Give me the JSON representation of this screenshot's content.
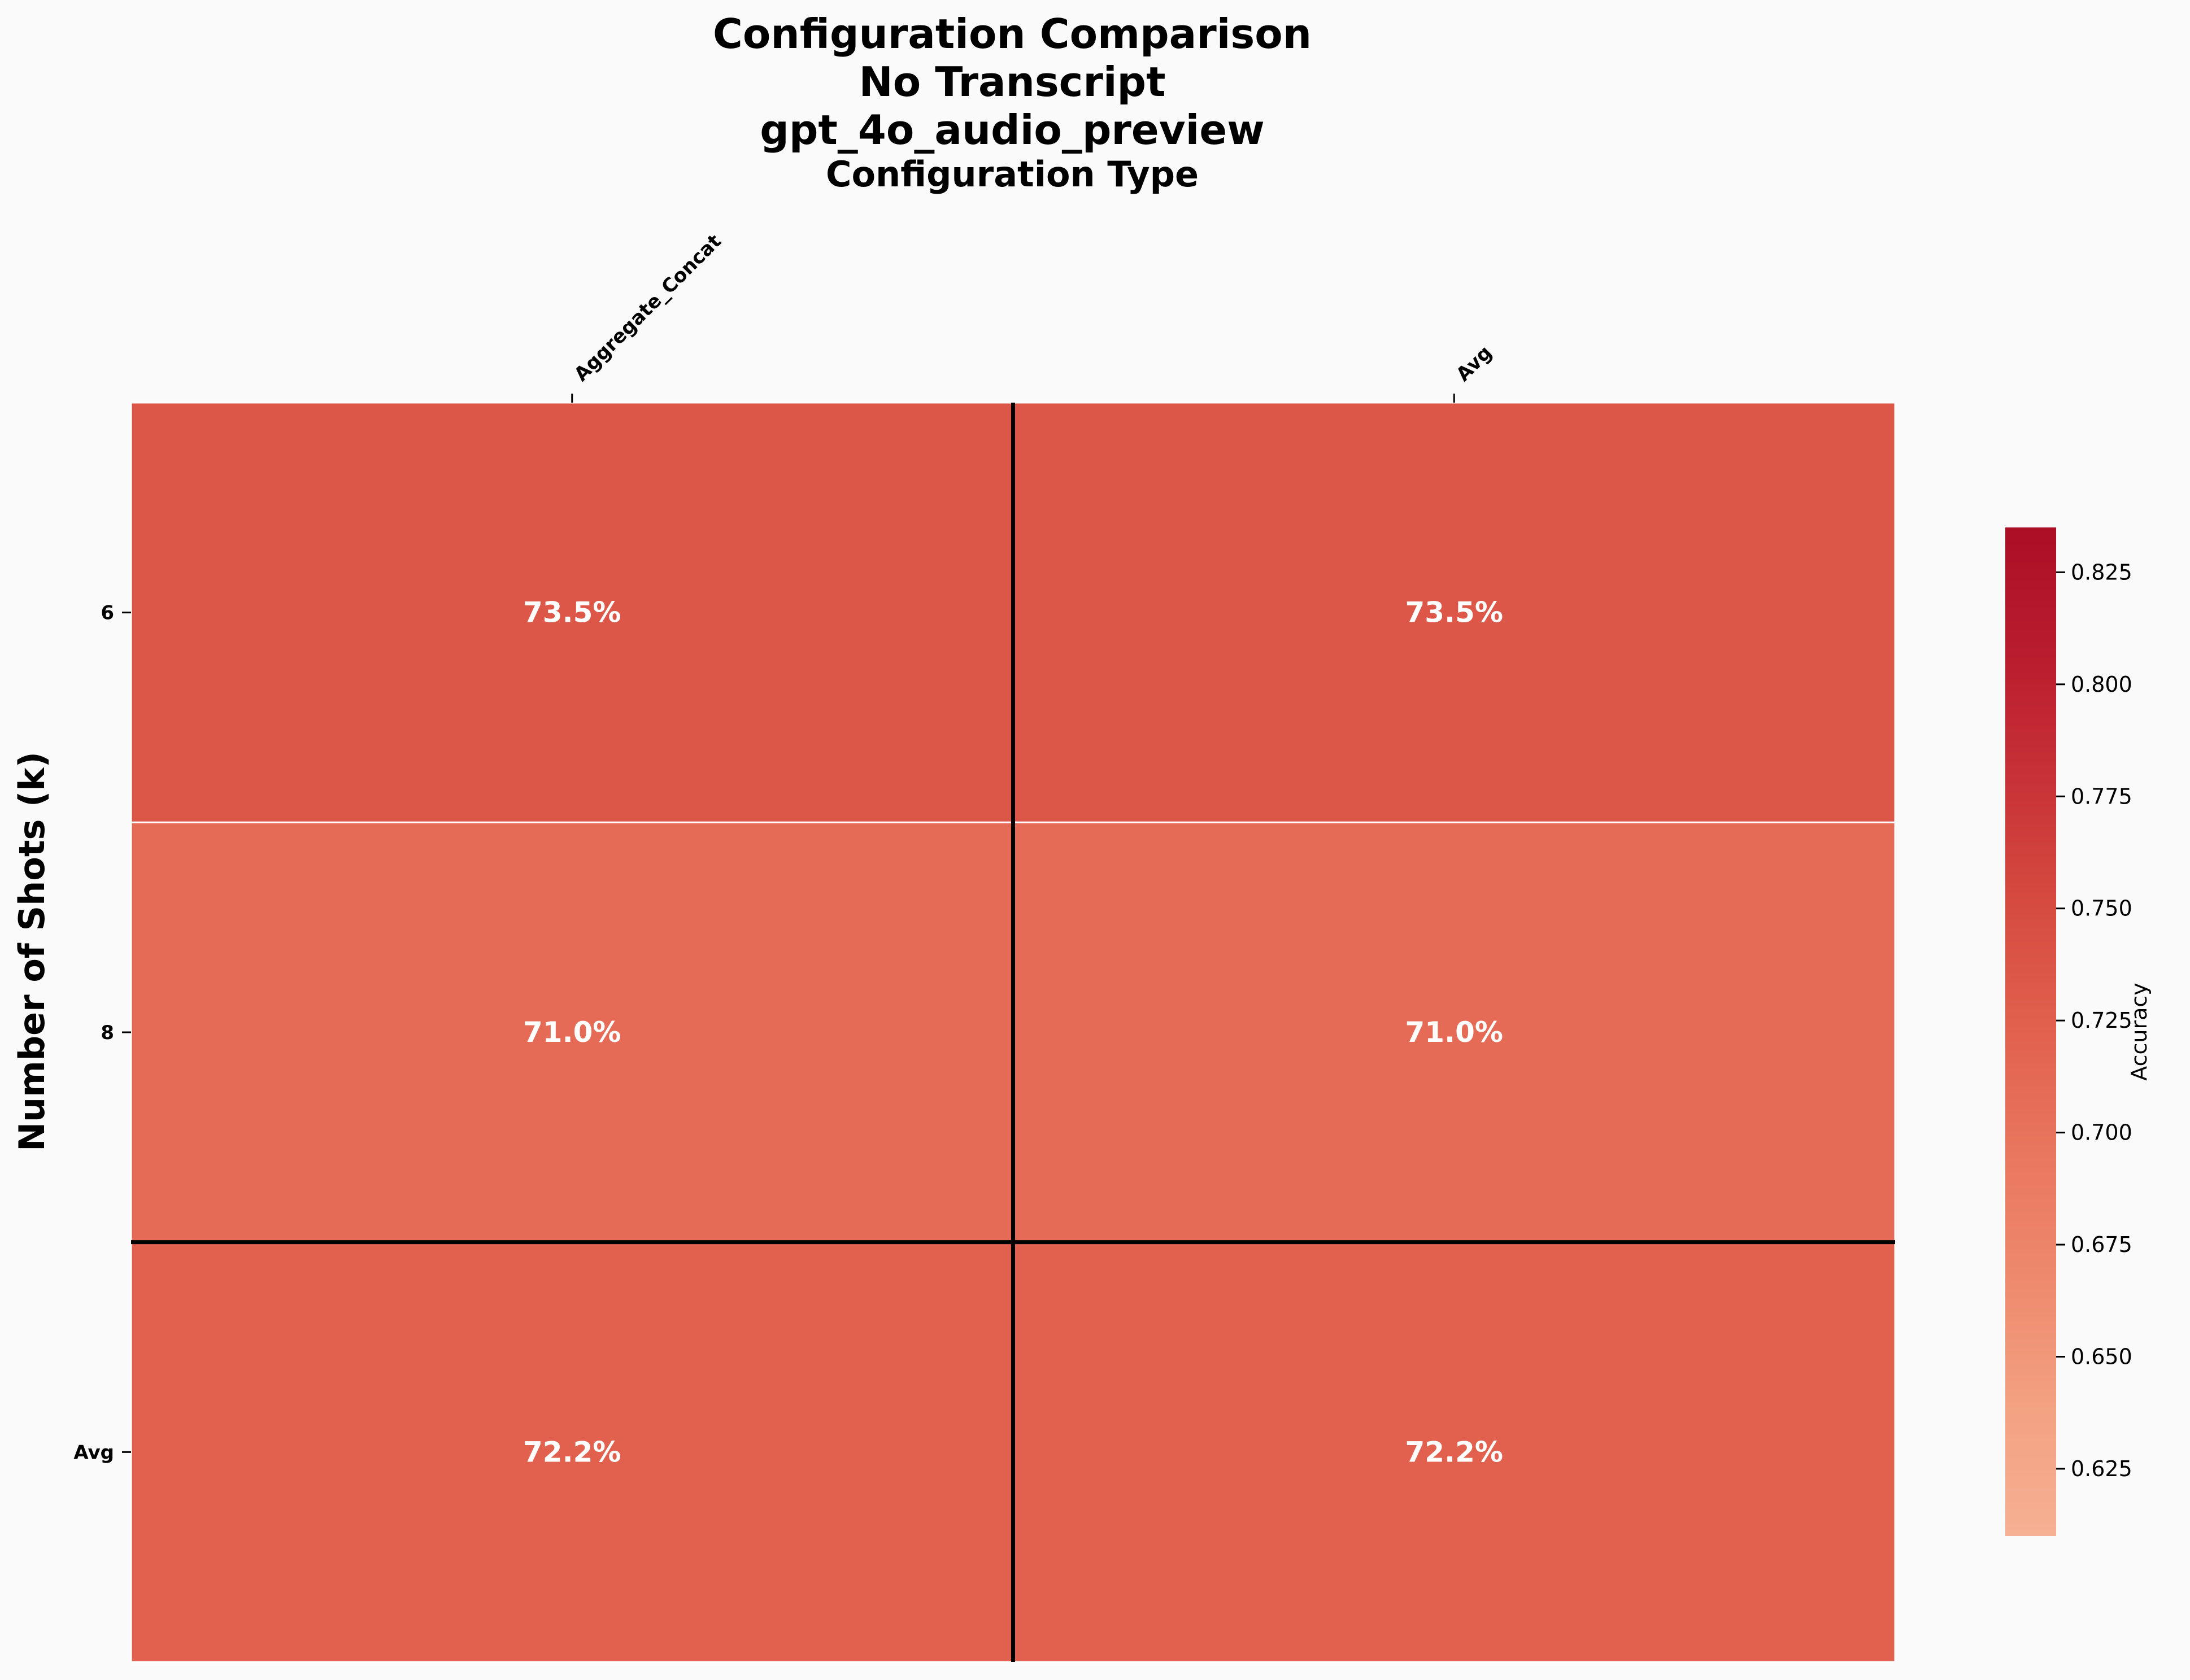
{
  "chart_data": {
    "type": "heatmap",
    "title_lines": [
      "Configuration Comparison",
      "No Transcript",
      "gpt_4o_audio_preview"
    ],
    "xlabel": "Configuration Type",
    "ylabel": "Number of Shots (k)",
    "x_categories": [
      "Aggregate_Concat",
      "Avg"
    ],
    "y_categories": [
      "6",
      "8",
      "Avg"
    ],
    "values": [
      [
        0.735,
        0.735
      ],
      [
        0.71,
        0.71
      ],
      [
        0.722,
        0.722
      ]
    ],
    "cell_labels": [
      [
        "73.5%",
        "73.5%"
      ],
      [
        "71.0%",
        "71.0%"
      ],
      [
        "72.2%",
        "72.2%"
      ]
    ],
    "colorbar": {
      "label": "Accuracy",
      "range": [
        0.61,
        0.835
      ],
      "ticks": [
        "0.625",
        "0.650",
        "0.675",
        "0.700",
        "0.725",
        "0.750",
        "0.775",
        "0.800",
        "0.825"
      ],
      "colormap": [
        "#f6b093",
        "#f3a282",
        "#ee8a6e",
        "#e9775f",
        "#e1614e",
        "#d64b40",
        "#c83237",
        "#b81c2e",
        "#aa0f26"
      ]
    },
    "grid": false,
    "legend": "colorbar-right"
  }
}
